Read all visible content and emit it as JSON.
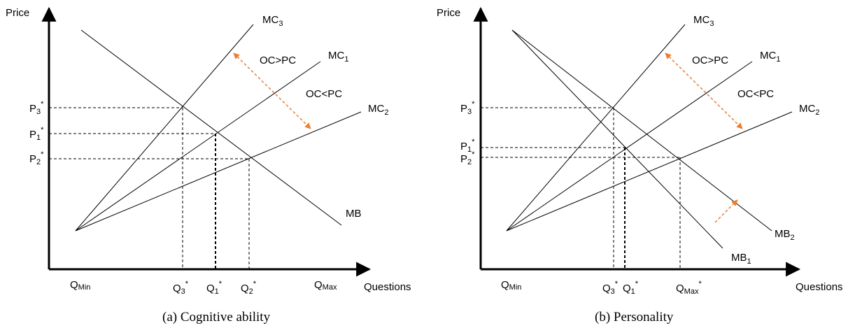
{
  "accent_color": "#ED7D31",
  "panel_a": {
    "y_axis_label": "Price",
    "x_axis_label": "Questions",
    "caption": "(a)  Cognitive ability",
    "curves": {
      "mc3": {
        "main": "MC",
        "sub": "3"
      },
      "mc1": {
        "main": "MC",
        "sub": "1"
      },
      "mc2": {
        "main": "MC",
        "sub": "2"
      },
      "mb": {
        "main": "MB"
      }
    },
    "annotations": {
      "oc_gt_pc": "OC>PC",
      "oc_lt_pc": "OC<PC"
    },
    "price_ticks": [
      {
        "main": "P",
        "sub": "3",
        "sup": "*"
      },
      {
        "main": "P",
        "sub": "1",
        "sup": "*"
      },
      {
        "main": "P",
        "sub": "2",
        "sup": "*"
      }
    ],
    "quantity_ticks": [
      {
        "main": "Q",
        "sub": "Min"
      },
      {
        "main": "Q",
        "sub": "3",
        "sup": "*"
      },
      {
        "main": "Q",
        "sub": "1",
        "sup": "*"
      },
      {
        "main": "Q",
        "sub": "2",
        "sup": "*"
      },
      {
        "main": "Q",
        "sub": "Max"
      }
    ]
  },
  "panel_b": {
    "y_axis_label": "Price",
    "x_axis_label": "Questions",
    "caption": "(b)  Personality",
    "curves": {
      "mc3": {
        "main": "MC",
        "sub": "3"
      },
      "mc1": {
        "main": "MC",
        "sub": "1"
      },
      "mc2": {
        "main": "MC",
        "sub": "2"
      },
      "mb2": {
        "main": "MB",
        "sub": "2"
      },
      "mb1": {
        "main": "MB",
        "sub": "1"
      }
    },
    "annotations": {
      "oc_gt_pc": "OC>PC",
      "oc_lt_pc": "OC<PC"
    },
    "price_ticks": [
      {
        "main": "P",
        "sub": "3",
        "sup": "*"
      },
      {
        "main": "P",
        "sub": "1",
        "sup": "*"
      },
      {
        "main": "P",
        "sub": "2",
        "sup": "*"
      }
    ],
    "quantity_ticks": [
      {
        "main": "Q",
        "sub": "Min"
      },
      {
        "main": "Q",
        "sub": "3",
        "sup": "*"
      },
      {
        "main": "Q",
        "sub": "1",
        "sup": "*"
      },
      {
        "main": "Q",
        "sub": "Max",
        "sup": "*"
      }
    ]
  }
}
